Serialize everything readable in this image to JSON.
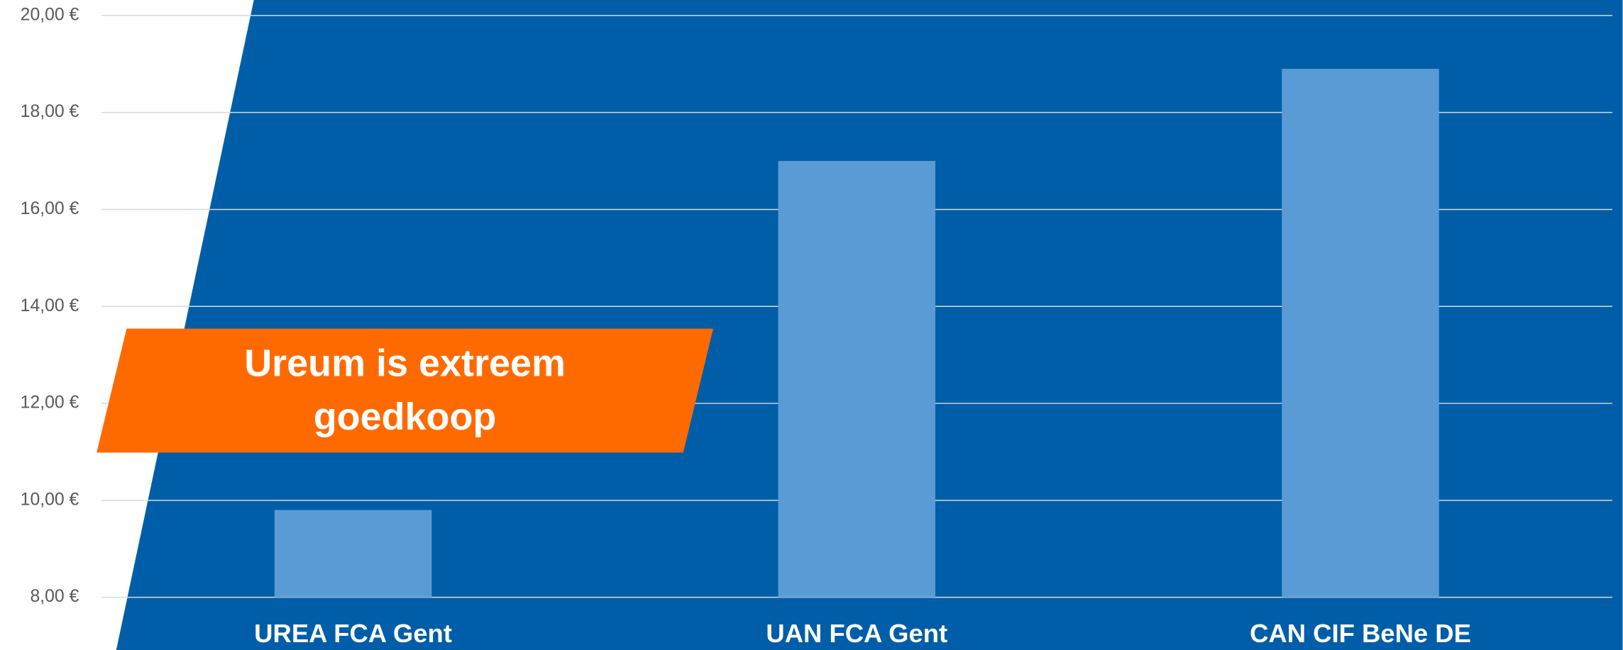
{
  "chart_data": {
    "type": "bar",
    "categories": [
      "UREA FCA Gent",
      "UAN FCA Gent",
      "CAN CIF BeNe DE"
    ],
    "values": [
      9.8,
      17.0,
      18.9
    ],
    "color": "#5b9bd5",
    "ylim": [
      8,
      20
    ],
    "yticks": [
      {
        "value": 8,
        "label": "8,00 €"
      },
      {
        "value": 10,
        "label": "10,00 €"
      },
      {
        "value": 12,
        "label": "12,00 €"
      },
      {
        "value": 14,
        "label": "14,00 €"
      },
      {
        "value": 16,
        "label": "16,00 €"
      },
      {
        "value": 18,
        "label": "18,00 €"
      },
      {
        "value": 20,
        "label": "20,00 €"
      }
    ],
    "grid": true,
    "annotation": [
      "Ureum is extreem",
      "goedkoop"
    ]
  }
}
